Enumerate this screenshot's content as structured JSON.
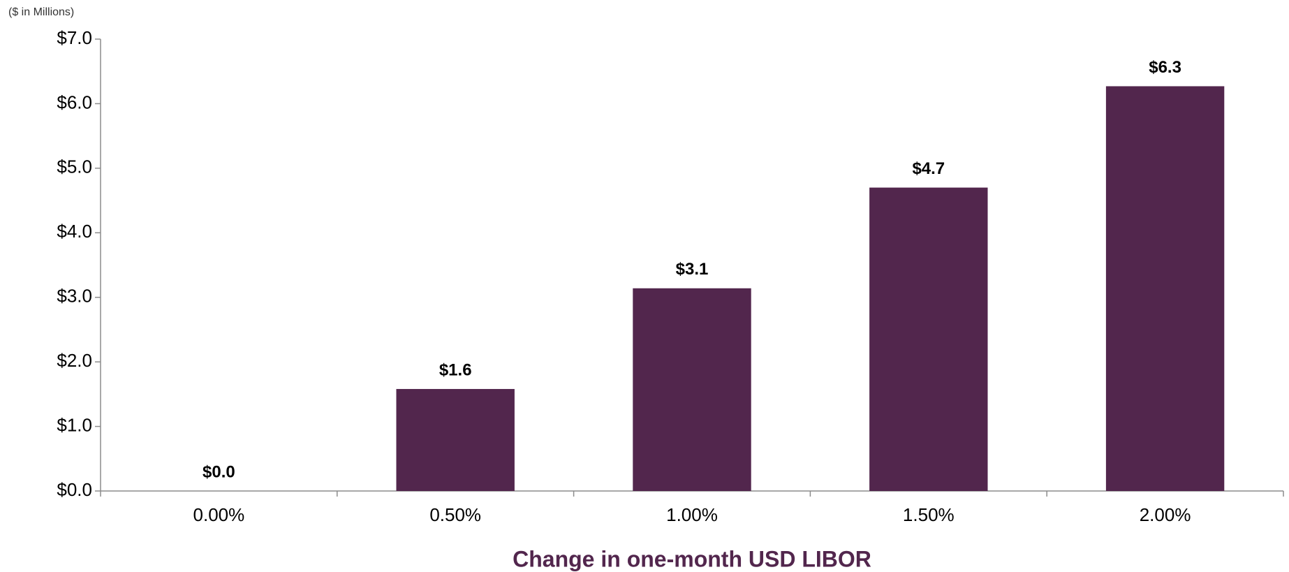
{
  "chart_data": {
    "type": "bar",
    "subtitle": "($ in Millions)",
    "x_label": "Change in one-month USD LIBOR",
    "categories": [
      "0.00%",
      "0.50%",
      "1.00%",
      "1.50%",
      "2.00%"
    ],
    "values": [
      0,
      1.58,
      3.14,
      4.7,
      6.27
    ],
    "value_labels": [
      "$0.0",
      "$1.6",
      "$3.1",
      "$4.7",
      "$6.3"
    ],
    "color": "#52264d",
    "ylim": [
      0,
      7
    ],
    "yticks": [
      {
        "value": 0,
        "label": "$0.0"
      },
      {
        "value": 1,
        "label": "$1.0"
      },
      {
        "value": 2,
        "label": "$2.0"
      },
      {
        "value": 3,
        "label": "$3.0"
      },
      {
        "value": 4,
        "label": "$4.0"
      },
      {
        "value": 5,
        "label": "$5.0"
      },
      {
        "value": 6,
        "label": "$6.0"
      },
      {
        "value": 7,
        "label": "$7.0"
      }
    ],
    "grid": false
  }
}
